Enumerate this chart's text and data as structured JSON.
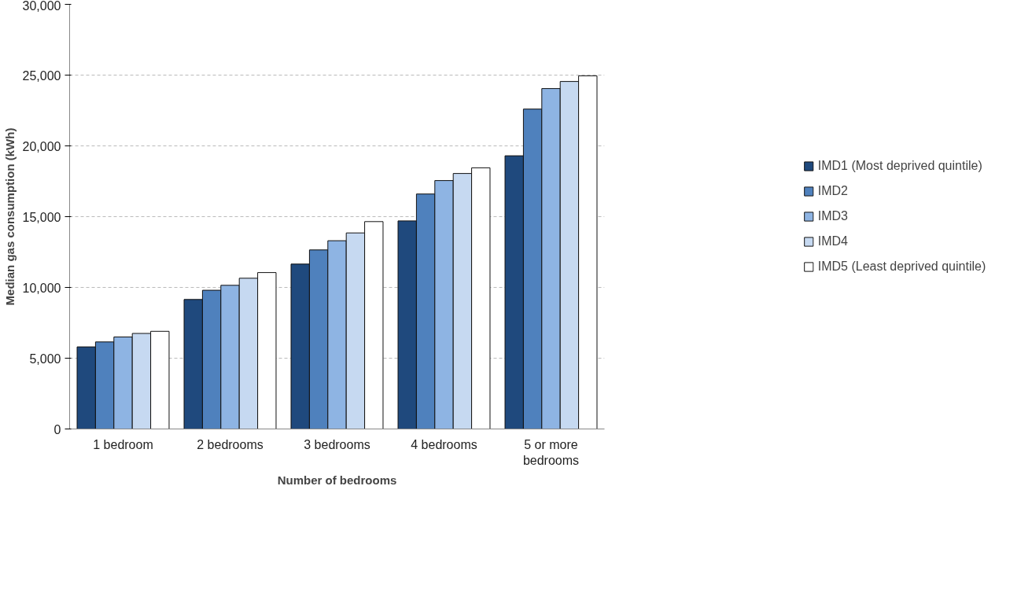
{
  "chart_data": {
    "type": "bar",
    "xlabel": "Number of bedrooms",
    "ylabel": "Median gas consumption (kWh)",
    "categories": [
      "1 bedroom",
      "2 bedrooms",
      "3 bedrooms",
      "4 bedrooms",
      "5 or more bedrooms"
    ],
    "series": [
      {
        "name": "IMD1 (Most deprived quintile)",
        "color": "#1f497d",
        "values": [
          5800,
          9150,
          11650,
          14700,
          19300
        ]
      },
      {
        "name": "IMD2",
        "color": "#4f81bd",
        "values": [
          6150,
          9800,
          12650,
          16600,
          22600
        ]
      },
      {
        "name": "IMD3",
        "color": "#8eb4e3",
        "values": [
          6500,
          10150,
          13300,
          17550,
          24050
        ]
      },
      {
        "name": "IMD4",
        "color": "#c6d9f1",
        "values": [
          6750,
          10650,
          13850,
          18050,
          24550
        ]
      },
      {
        "name": "IMD5 (Least deprived quintile)",
        "color": "#ffffff",
        "values": [
          6900,
          11050,
          14650,
          18450,
          24950
        ]
      }
    ],
    "ylim": [
      0,
      30000
    ],
    "yticks": [
      {
        "value": 0,
        "label": "0"
      },
      {
        "value": 5000,
        "label": "5,000"
      },
      {
        "value": 10000,
        "label": "10,000"
      },
      {
        "value": 15000,
        "label": "15,000"
      },
      {
        "value": 20000,
        "label": "20,000"
      },
      {
        "value": 25000,
        "label": "25,000"
      },
      {
        "value": 30000,
        "label": "30,000"
      }
    ],
    "grid": "y",
    "legend": "right"
  }
}
